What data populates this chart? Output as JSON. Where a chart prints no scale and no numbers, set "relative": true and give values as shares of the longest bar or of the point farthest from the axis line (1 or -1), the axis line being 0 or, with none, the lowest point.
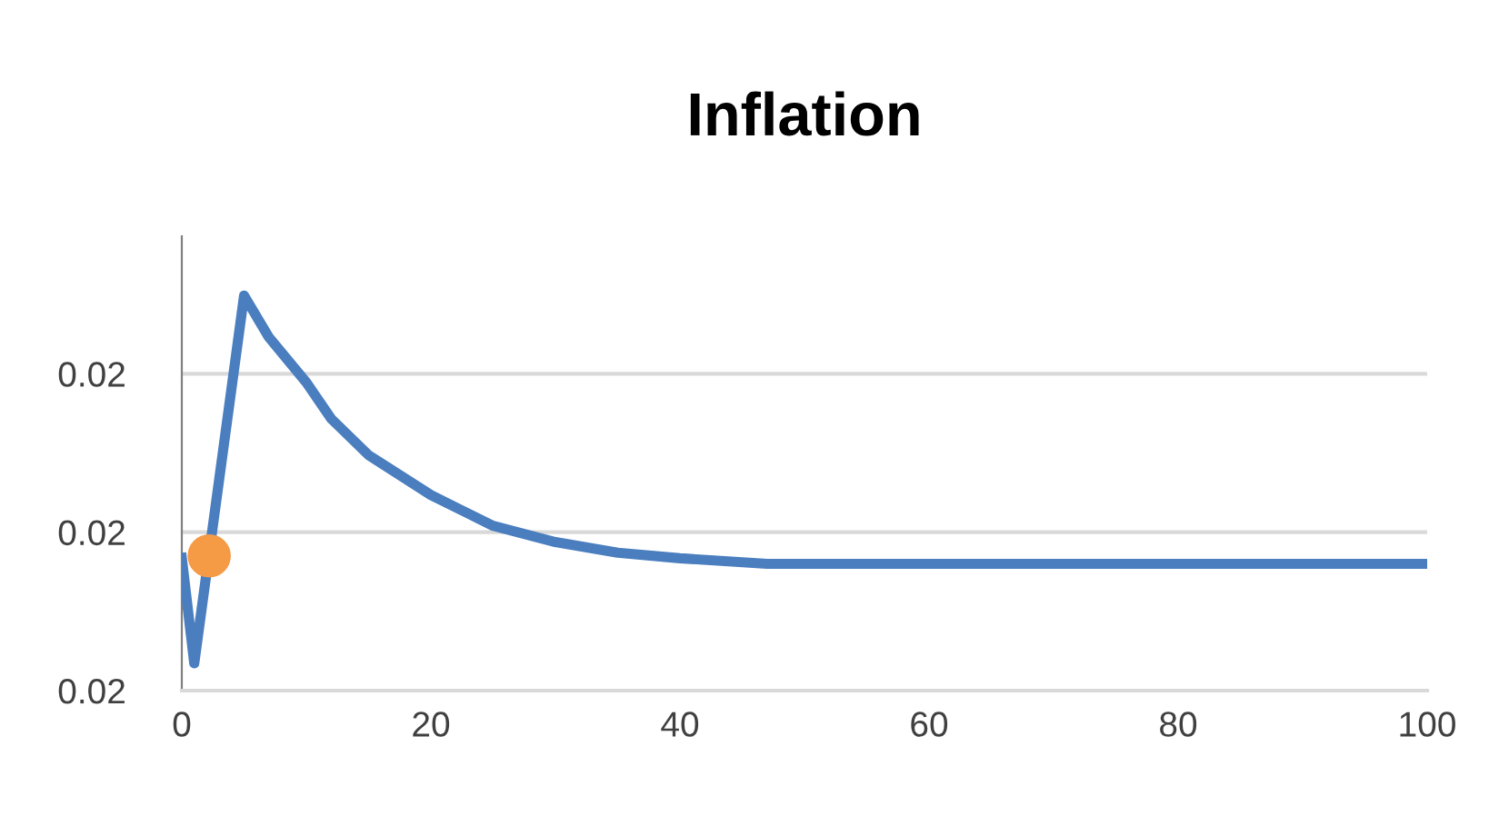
{
  "chart_data": {
    "type": "line",
    "title": "Inflation",
    "relative": true,
    "annotations": [
      "0.02",
      "0.02",
      "0.02"
    ],
    "xlim": [
      0,
      100
    ],
    "xticks": [
      0,
      20,
      40,
      60,
      80,
      100
    ],
    "ref_lines": [
      {
        "axis": "y",
        "value": 0.401,
        "color": "#d9d9d9"
      },
      {
        "axis": "y",
        "value": 0.802,
        "color": "#d9d9d9"
      }
    ],
    "series": [
      {
        "color": "#4a7ebf",
        "marker": "none",
        "x": [
          0,
          1,
          5,
          7,
          10,
          12,
          15,
          20,
          25,
          30,
          35,
          40,
          47,
          100
        ],
        "values": [
          0.336,
          0.069,
          1.0,
          0.894,
          0.78,
          0.688,
          0.596,
          0.495,
          0.417,
          0.376,
          0.349,
          0.335,
          0.321,
          0.321
        ]
      },
      {
        "type": "scatter",
        "color": "#f59a45",
        "marker": "circle",
        "x": [
          2.2
        ],
        "values": [
          0.341
        ]
      }
    ]
  }
}
